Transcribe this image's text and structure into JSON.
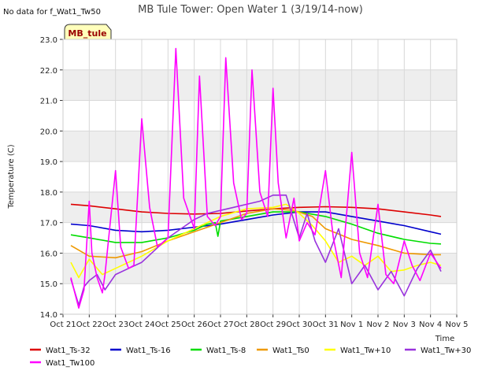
{
  "chart_data": {
    "type": "line",
    "title": "MB Tule Tower: Open Water 1 (3/19/14-now)",
    "no_data_note": "No data for f_Wat1_Tw50",
    "station_label": "MB_tule",
    "xlabel": "Time",
    "ylabel": "Temperature (C)",
    "ylim": [
      14.0,
      23.0
    ],
    "yticks": [
      "14.0",
      "15.0",
      "16.0",
      "17.0",
      "18.0",
      "19.0",
      "20.0",
      "21.0",
      "22.0",
      "23.0"
    ],
    "xlim": [
      0,
      15
    ],
    "xticks": [
      "Oct 21",
      "Oct 22",
      "Oct 23",
      "Oct 24",
      "Oct 25",
      "Oct 26",
      "Oct 27",
      "Oct 28",
      "Oct 29",
      "Oct 30",
      "Oct 31",
      "Nov 1",
      "Nov 2",
      "Nov 3",
      "Nov 4",
      "Nov 5"
    ],
    "bands": [
      [
        15.0,
        16.0
      ],
      [
        17.0,
        18.0
      ],
      [
        19.0,
        20.0
      ],
      [
        21.0,
        22.0
      ]
    ],
    "series": [
      {
        "name": "Wat1_Ts-32",
        "color": "#dd0000",
        "x": [
          0.3,
          1,
          2,
          3,
          4,
          5,
          6,
          7,
          8,
          9,
          10,
          11,
          12,
          13,
          14,
          14.4
        ],
        "y": [
          17.6,
          17.55,
          17.45,
          17.35,
          17.3,
          17.28,
          17.3,
          17.38,
          17.45,
          17.5,
          17.52,
          17.5,
          17.45,
          17.35,
          17.25,
          17.2
        ]
      },
      {
        "name": "Wat1_Ts-16",
        "color": "#0000cc",
        "x": [
          0.3,
          1,
          2,
          3,
          4,
          5,
          6,
          7,
          8,
          9,
          10,
          11,
          12,
          13,
          14,
          14.4
        ],
        "y": [
          16.95,
          16.9,
          16.75,
          16.7,
          16.75,
          16.85,
          16.95,
          17.1,
          17.25,
          17.35,
          17.35,
          17.2,
          17.05,
          16.9,
          16.7,
          16.62
        ]
      },
      {
        "name": "Wat1_Ts-8",
        "color": "#00dd00",
        "x": [
          0.3,
          1,
          2,
          3,
          4,
          5,
          5.5,
          5.8,
          5.9,
          6,
          7,
          8,
          9,
          10,
          11,
          12,
          13,
          14,
          14.4
        ],
        "y": [
          16.6,
          16.5,
          16.35,
          16.35,
          16.5,
          16.75,
          16.95,
          17.0,
          16.55,
          17.05,
          17.2,
          17.35,
          17.35,
          17.2,
          16.95,
          16.65,
          16.45,
          16.32,
          16.3
        ]
      },
      {
        "name": "Wat1_Ts0",
        "color": "#ee9900",
        "x": [
          0.3,
          1,
          2,
          3,
          4,
          5,
          6,
          7,
          8,
          8.8,
          9.5,
          10,
          11,
          12,
          13,
          14,
          14.4
        ],
        "y": [
          16.25,
          15.9,
          15.85,
          16.05,
          16.4,
          16.7,
          17.0,
          17.3,
          17.45,
          17.4,
          17.2,
          16.8,
          16.45,
          16.25,
          16.0,
          15.95,
          15.95
        ]
      },
      {
        "name": "Wat1_Tw+10",
        "color": "#ffff00",
        "x": [
          0.3,
          0.6,
          1,
          1.5,
          2,
          3,
          4,
          5,
          6,
          7,
          8,
          8.5,
          9,
          9.5,
          10,
          10.5,
          11,
          11.5,
          12,
          12.5,
          13,
          13.5,
          14,
          14.4
        ],
        "y": [
          15.7,
          15.2,
          15.8,
          15.3,
          15.5,
          15.9,
          16.4,
          16.8,
          17.2,
          17.45,
          17.5,
          17.6,
          17.3,
          16.9,
          16.4,
          15.7,
          15.9,
          15.6,
          15.9,
          15.4,
          15.45,
          15.6,
          15.7,
          15.6
        ]
      },
      {
        "name": "Wat1_Tw+30",
        "color": "#9933dd",
        "x": [
          0.3,
          0.6,
          0.8,
          1,
          1.3,
          1.6,
          2,
          2.5,
          3,
          3.5,
          4,
          4.5,
          5,
          5.5,
          6,
          6.5,
          7,
          7.5,
          8,
          8.5,
          9,
          9.3,
          9.6,
          10,
          10.5,
          11,
          11.5,
          12,
          12.5,
          13,
          13.5,
          14,
          14.4
        ],
        "y": [
          15.15,
          14.3,
          14.9,
          15.1,
          15.3,
          14.8,
          15.3,
          15.5,
          15.7,
          16.1,
          16.5,
          16.8,
          17.1,
          17.3,
          17.4,
          17.5,
          17.6,
          17.7,
          17.9,
          17.9,
          16.5,
          17.3,
          16.4,
          15.7,
          16.8,
          15.0,
          15.6,
          14.8,
          15.4,
          14.6,
          15.5,
          16.1,
          15.4
        ]
      },
      {
        "name": "Wat1_Tw100",
        "color": "#ff00ff",
        "x": [
          0.3,
          0.6,
          0.8,
          1,
          1.1,
          1.3,
          1.5,
          1.6,
          2,
          2.2,
          2.5,
          2.7,
          3,
          3.3,
          3.6,
          4,
          4.3,
          4.6,
          5,
          5.2,
          5.5,
          5.8,
          6,
          6.2,
          6.5,
          6.8,
          7,
          7.2,
          7.5,
          7.8,
          8,
          8.2,
          8.5,
          8.8,
          9,
          9.3,
          9.6,
          10,
          10.3,
          10.6,
          11,
          11.3,
          11.6,
          12,
          12.3,
          12.6,
          13,
          13.3,
          13.6,
          14,
          14.4
        ],
        "y": [
          15.2,
          14.2,
          14.8,
          17.7,
          16.0,
          15.2,
          14.7,
          15.3,
          18.7,
          16.2,
          15.5,
          15.6,
          20.4,
          17.5,
          16.2,
          16.5,
          22.7,
          17.8,
          16.8,
          21.8,
          17.2,
          16.9,
          17.2,
          22.4,
          18.3,
          17.1,
          17.3,
          22.0,
          18.0,
          17.2,
          21.4,
          18.3,
          16.5,
          17.8,
          16.4,
          17.0,
          16.6,
          18.7,
          16.5,
          15.2,
          19.3,
          16.0,
          15.2,
          17.6,
          15.3,
          15.0,
          16.4,
          15.6,
          15.1,
          16.0,
          15.5
        ]
      }
    ]
  }
}
